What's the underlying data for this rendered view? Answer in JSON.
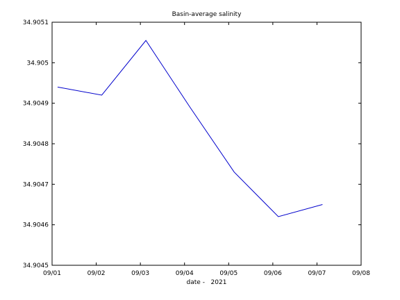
{
  "chart_data": {
    "type": "line",
    "title": "Basin-average salinity",
    "xlabel": "date -   2021",
    "ylabel": "",
    "x": [
      "09/01 03:00",
      "09/02 03:00",
      "09/03 03:00",
      "09/04 03:00",
      "09/05 03:00",
      "09/06 03:00",
      "09/07 03:00"
    ],
    "xlim": [
      "09/01",
      "09/08"
    ],
    "xticks": [
      "09/01",
      "09/02",
      "09/03",
      "09/04",
      "09/05",
      "09/06",
      "09/07",
      "09/08"
    ],
    "ylim": [
      34.9045,
      34.9051
    ],
    "yticks": [
      "34.9045",
      "34.9046",
      "34.9047",
      "34.9048",
      "34.9049",
      "34.905",
      "34.9051"
    ],
    "series": [
      {
        "color": "#0000cc",
        "values": [
          34.90494,
          34.90492,
          34.905055,
          34.90489,
          34.90473,
          34.90462,
          34.90465
        ]
      }
    ],
    "grid": false,
    "legend": "none"
  }
}
